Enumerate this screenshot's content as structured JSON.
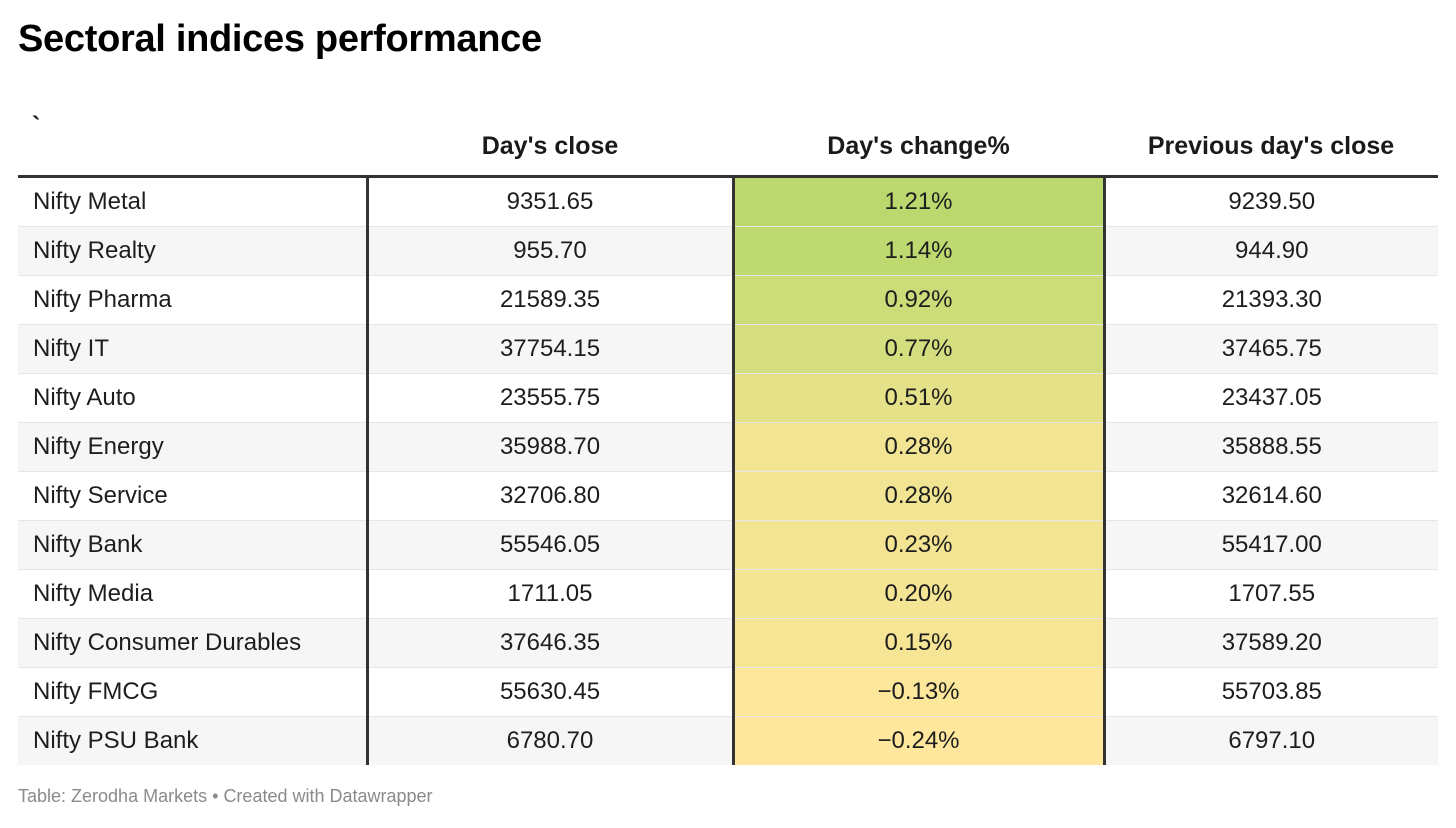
{
  "title": "Sectoral indices performance",
  "footer": {
    "source": "Table: Zerodha Markets",
    "separator": "•",
    "credit": "Created with Datawrapper"
  },
  "colors": {
    "high": "#bbd86e",
    "mid": "#f2e492",
    "low": "#ffe89e",
    "rule": "#333333",
    "stripe": "#f6f6f6"
  },
  "chart_data": {
    "type": "table",
    "title": "Sectoral indices performance",
    "columns": [
      "`",
      "Day's close",
      "Day's change%",
      "Previous day's close"
    ],
    "rows": [
      [
        "Nifty Metal",
        "9351.65",
        "1.21%",
        "9239.50"
      ],
      [
        "Nifty Realty",
        "955.70",
        "1.14%",
        "944.90"
      ],
      [
        "Nifty Pharma",
        "21589.35",
        "0.92%",
        "21393.30"
      ],
      [
        "Nifty IT",
        "37754.15",
        "0.77%",
        "37465.75"
      ],
      [
        "Nifty Auto",
        "23555.75",
        "0.51%",
        "23437.05"
      ],
      [
        "Nifty Energy",
        "35988.70",
        "0.28%",
        "35888.55"
      ],
      [
        "Nifty Service",
        "32706.80",
        "0.28%",
        "32614.60"
      ],
      [
        "Nifty Bank",
        "55546.05",
        "0.23%",
        "55417.00"
      ],
      [
        "Nifty Media",
        "1711.05",
        "0.20%",
        "1707.55"
      ],
      [
        "Nifty Consumer Durables",
        "37646.35",
        "0.15%",
        "37589.20"
      ],
      [
        "Nifty FMCG",
        "55630.45",
        "−0.13%",
        "55703.85"
      ],
      [
        "Nifty PSU Bank",
        "6780.70",
        "−0.24%",
        "6797.10"
      ]
    ],
    "change_values": [
      1.21,
      1.14,
      0.92,
      0.77,
      0.51,
      0.28,
      0.28,
      0.23,
      0.2,
      0.15,
      -0.13,
      -0.24
    ]
  }
}
